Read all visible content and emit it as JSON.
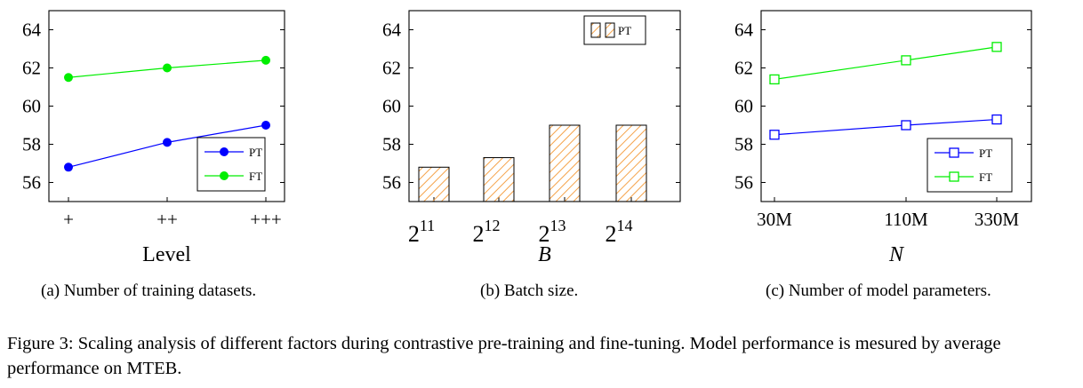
{
  "chart_data": [
    {
      "type": "line",
      "xlabel": "Level",
      "categories": [
        "+",
        "++",
        "+++"
      ],
      "yticks": [
        56,
        58,
        60,
        62,
        64
      ],
      "ylim": [
        55,
        65
      ],
      "legend_position": "bottom-right",
      "series": [
        {
          "name": "PT",
          "values": [
            56.8,
            58.1,
            59.0
          ],
          "color": "#0000ff",
          "marker": "filled-circle"
        },
        {
          "name": "FT",
          "values": [
            61.5,
            62.0,
            62.4
          ],
          "color": "#00ee00",
          "marker": "filled-circle"
        }
      ],
      "subcaption": "(a) Number of training datasets."
    },
    {
      "type": "bar",
      "xlabel": "B",
      "categories": [
        {
          "base": "2",
          "exp": "11"
        },
        {
          "base": "2",
          "exp": "12"
        },
        {
          "base": "2",
          "exp": "13"
        },
        {
          "base": "2",
          "exp": "14"
        }
      ],
      "yticks": [
        56,
        58,
        60,
        62,
        64
      ],
      "ylim": [
        55,
        65
      ],
      "legend_position": "top-right",
      "series": [
        {
          "name": "PT",
          "values": [
            56.8,
            57.3,
            59.0,
            59.0
          ],
          "color": "#f5a34a",
          "pattern": "hatch"
        }
      ],
      "subcaption": "(b) Batch size."
    },
    {
      "type": "line",
      "xlabel": "N",
      "categories": [
        "30M",
        "110M",
        "330M"
      ],
      "yticks": [
        56,
        58,
        60,
        62,
        64
      ],
      "ylim": [
        55,
        65
      ],
      "legend_position": "bottom-right",
      "series": [
        {
          "name": "PT",
          "values": [
            58.5,
            59.0,
            59.3
          ],
          "color": "#0000ff",
          "marker": "open-square"
        },
        {
          "name": "FT",
          "values": [
            61.4,
            62.4,
            63.1
          ],
          "color": "#00ee00",
          "marker": "open-square"
        }
      ],
      "subcaption": "(c) Number of model parameters."
    }
  ],
  "caption": "Figure 3: Scaling analysis of different factors during contrastive pre-training and fine-tuning. Model performance is mesured by average performance on MTEB."
}
